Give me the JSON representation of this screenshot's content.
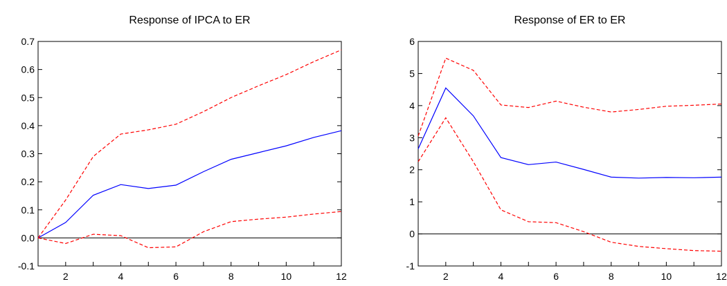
{
  "chart_data": [
    {
      "type": "line",
      "title": "Response of IPCA to ER",
      "xlabel": "",
      "ylabel": "",
      "x": [
        1,
        2,
        3,
        4,
        5,
        6,
        7,
        8,
        9,
        10,
        11,
        12
      ],
      "xlim": [
        1,
        12
      ],
      "ylim": [
        -0.1,
        0.7
      ],
      "xticks": [
        "2",
        "4",
        "6",
        "8",
        "10",
        "12"
      ],
      "yticks": [
        "-0.1",
        "0.0",
        "0.1",
        "0.2",
        "0.3",
        "0.4",
        "0.5",
        "0.6",
        "0.7"
      ],
      "zero_line": true,
      "grid": false,
      "series": [
        {
          "style": "solid",
          "color": "#0000ff",
          "values": [
            0.0,
            0.055,
            0.152,
            0.19,
            0.176,
            0.188,
            0.236,
            0.28,
            0.304,
            0.328,
            0.358,
            0.382
          ]
        },
        {
          "style": "dashed",
          "color": "#ff0000",
          "values": [
            0.0,
            0.135,
            0.29,
            0.37,
            0.385,
            0.405,
            0.45,
            0.5,
            0.542,
            0.582,
            0.628,
            0.67
          ]
        },
        {
          "style": "dashed",
          "color": "#ff0000",
          "values": [
            0.0,
            -0.02,
            0.013,
            0.008,
            -0.035,
            -0.032,
            0.022,
            0.058,
            0.067,
            0.074,
            0.085,
            0.094
          ]
        }
      ]
    },
    {
      "type": "line",
      "title": "Response of ER to ER",
      "xlabel": "",
      "ylabel": "",
      "x": [
        1,
        2,
        3,
        4,
        5,
        6,
        7,
        8,
        9,
        10,
        11,
        12
      ],
      "xlim": [
        1,
        12
      ],
      "ylim": [
        -1,
        6
      ],
      "xticks": [
        "2",
        "4",
        "6",
        "8",
        "10",
        "12"
      ],
      "yticks": [
        "-1",
        "0",
        "1",
        "2",
        "3",
        "4",
        "5",
        "6"
      ],
      "zero_line": true,
      "grid": false,
      "series": [
        {
          "style": "solid",
          "color": "#0000ff",
          "values": [
            2.65,
            4.55,
            3.68,
            2.38,
            2.16,
            2.24,
            2.01,
            1.77,
            1.74,
            1.76,
            1.75,
            1.77
          ]
        },
        {
          "style": "dashed",
          "color": "#ff0000",
          "values": [
            3.05,
            5.48,
            5.1,
            4.02,
            3.94,
            4.14,
            3.95,
            3.8,
            3.88,
            3.98,
            4.01,
            4.05
          ]
        },
        {
          "style": "dashed",
          "color": "#ff0000",
          "values": [
            2.25,
            3.62,
            2.25,
            0.75,
            0.38,
            0.35,
            0.07,
            -0.26,
            -0.39,
            -0.46,
            -0.52,
            -0.54
          ]
        }
      ]
    }
  ]
}
